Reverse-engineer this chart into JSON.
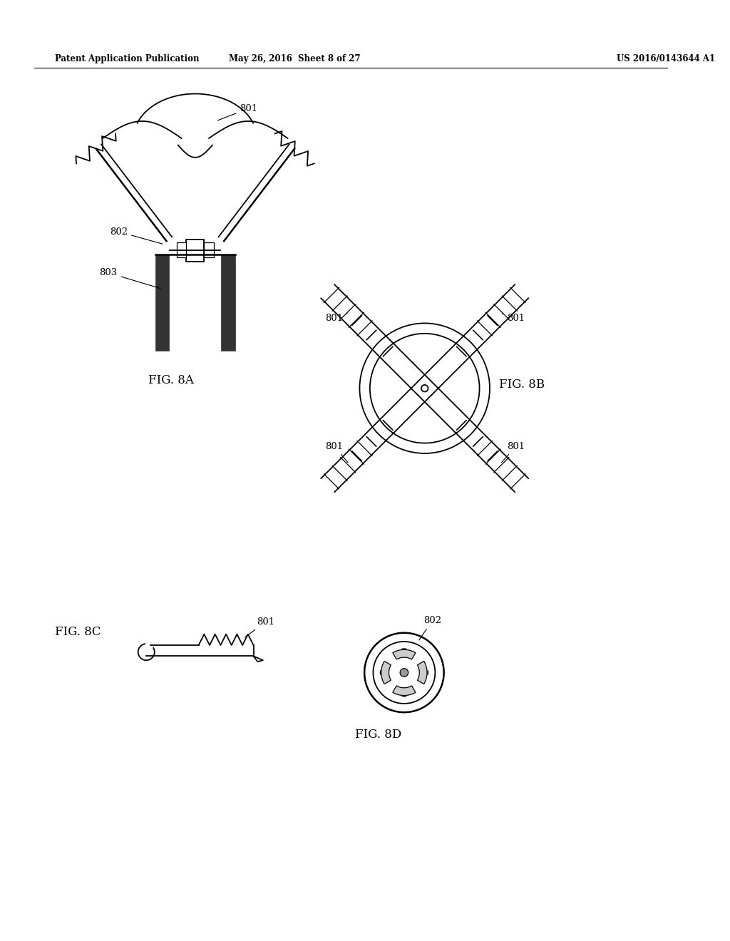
{
  "bg_color": "#ffffff",
  "header_left": "Patent Application Publication",
  "header_mid": "May 26, 2016  Sheet 8 of 27",
  "header_right": "US 2016/0143644 A1"
}
